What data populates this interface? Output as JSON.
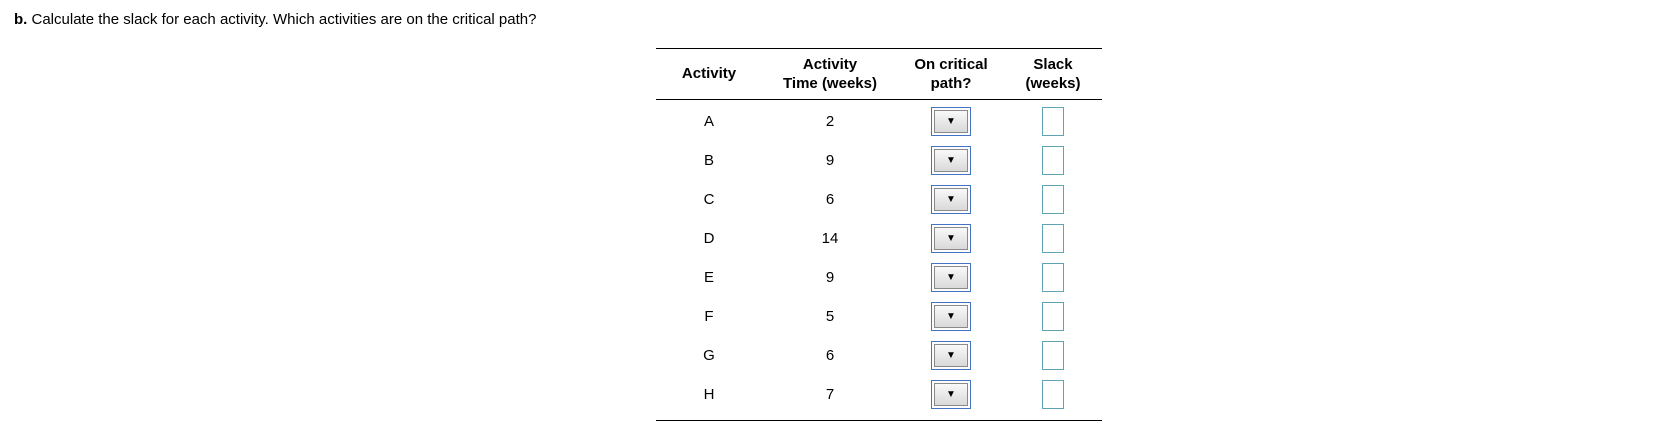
{
  "question": {
    "label": "b.",
    "text": " Calculate the slack for each activity. Which activities are on the critical path?"
  },
  "table": {
    "headers": {
      "activity": "Activity",
      "time_line1": "Activity",
      "time_line2": "Time (weeks)",
      "critical_line1": "On critical",
      "critical_line2": "path?",
      "slack_line1": "Slack",
      "slack_line2": "(weeks)"
    },
    "rows": [
      {
        "activity": "A",
        "time": "2"
      },
      {
        "activity": "B",
        "time": "9"
      },
      {
        "activity": "C",
        "time": "6"
      },
      {
        "activity": "D",
        "time": "14"
      },
      {
        "activity": "E",
        "time": "9"
      },
      {
        "activity": "F",
        "time": "5"
      },
      {
        "activity": "G",
        "time": "6"
      },
      {
        "activity": "H",
        "time": "7"
      }
    ]
  },
  "icons": {
    "dropdown_arrow": "▼"
  },
  "colors": {
    "dropdown_border": "#4472c4",
    "slack_border": "#5fa3b5",
    "table_line": "#000000"
  }
}
